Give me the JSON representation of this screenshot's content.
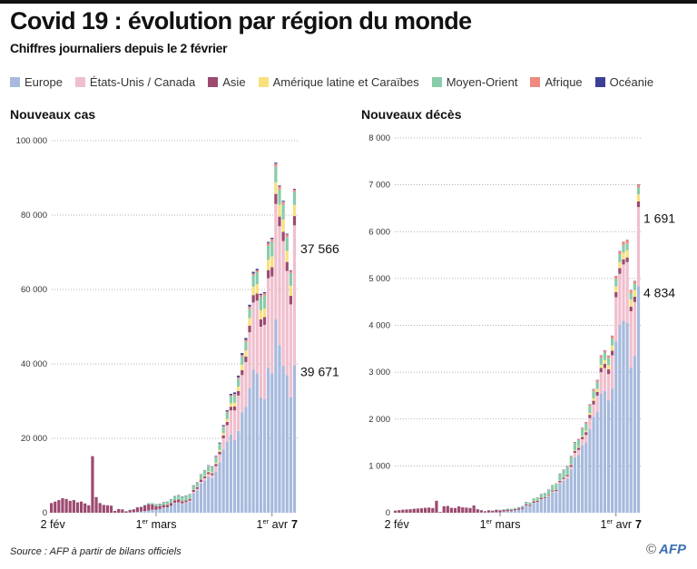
{
  "header": {
    "title": "Covid 19 : évolution par région du monde",
    "subtitle": "Chiffres journaliers depuis le 2 février"
  },
  "legend": [
    {
      "label": "Europe",
      "color": "#a7badd"
    },
    {
      "label": "États-Unis / Canada",
      "color": "#f0bfcd"
    },
    {
      "label": "Asie",
      "color": "#9c4a70"
    },
    {
      "label": "Amérique latine et Caraïbes",
      "color": "#f9e07f"
    },
    {
      "label": "Moyen-Orient",
      "color": "#88ccaa"
    },
    {
      "label": "Afrique",
      "color": "#ee8a7f"
    },
    {
      "label": "Océanie",
      "color": "#3d3f98"
    }
  ],
  "footer": {
    "source": "Source : AFP à partir de bilans officiels",
    "copyright": "©",
    "logo": "AFP"
  },
  "chart_data": [
    {
      "type": "bar",
      "stacked": true,
      "title": "Nouveaux cas",
      "ylim": [
        0,
        100000
      ],
      "yticks": [
        "0",
        "20 000",
        "40 000",
        "60 000",
        "80 000",
        "100 000"
      ],
      "ytick_values": [
        0,
        20000,
        40000,
        60000,
        80000,
        100000
      ],
      "x_start": "2 fév",
      "x_end": "7 avr",
      "xtick_labels": [
        {
          "day": 0,
          "text": "2 fév"
        },
        {
          "day": 28,
          "text": "1",
          "sup": "er",
          "rest": " mars"
        },
        {
          "day": 59,
          "text": "1",
          "sup": "er",
          "rest": " avr"
        },
        {
          "day": 65,
          "text": "7",
          "bold": true
        }
      ],
      "grid": true,
      "annotations": [
        {
          "text": "37 566",
          "series": "États-Unis / Canada"
        },
        {
          "text": "39 671",
          "series": "Europe"
        }
      ],
      "series": [
        {
          "name": "Europe",
          "values": [
            0,
            0,
            0,
            0,
            0,
            0,
            0,
            0,
            0,
            0,
            0,
            0,
            0,
            0,
            0,
            0,
            0,
            0,
            0,
            0,
            0,
            60,
            150,
            250,
            350,
            450,
            600,
            800,
            800,
            1000,
            1400,
            1400,
            1800,
            2600,
            2700,
            2400,
            2700,
            3000,
            5300,
            6000,
            7800,
            8700,
            9700,
            9300,
            11000,
            13500,
            17000,
            19000,
            21000,
            19500,
            22000,
            27000,
            28500,
            33500,
            38500,
            37500,
            31000,
            30500,
            39000,
            37500,
            52000,
            45000,
            39500,
            37000,
            31000,
            39671
          ]
        },
        {
          "name": "États-Unis / Canada",
          "values": [
            0,
            0,
            0,
            0,
            0,
            0,
            0,
            0,
            0,
            0,
            0,
            0,
            0,
            0,
            0,
            0,
            0,
            0,
            0,
            0,
            0,
            0,
            0,
            0,
            0,
            0,
            0,
            0,
            5,
            20,
            30,
            40,
            60,
            100,
            100,
            120,
            150,
            250,
            300,
            400,
            500,
            600,
            700,
            800,
            1500,
            2200,
            3000,
            4500,
            6500,
            8000,
            9500,
            10000,
            12000,
            15000,
            18000,
            19500,
            19000,
            20000,
            24000,
            26000,
            31000,
            32000,
            33500,
            28000,
            25000,
            37566
          ]
        },
        {
          "name": "Asie",
          "values": [
            2600,
            3000,
            3400,
            3900,
            3700,
            3200,
            3400,
            2800,
            3000,
            2500,
            2000,
            15200,
            4200,
            2600,
            2100,
            2000,
            1900,
            500,
            1000,
            900,
            400,
            700,
            800,
            1200,
            1200,
            1500,
            1700,
            1400,
            1000,
            800,
            700,
            700,
            800,
            700,
            800,
            600,
            500,
            500,
            500,
            500,
            600,
            500,
            500,
            500,
            600,
            700,
            800,
            900,
            1000,
            1100,
            1200,
            1300,
            1500,
            1800,
            2000,
            1900,
            2000,
            2100,
            2200,
            2500,
            2700,
            2600,
            2500,
            2400,
            2300,
            2500
          ]
        },
        {
          "name": "Amérique latine et Caraïbes",
          "values": [
            0,
            0,
            0,
            0,
            0,
            0,
            0,
            0,
            0,
            0,
            0,
            0,
            0,
            0,
            0,
            0,
            0,
            0,
            0,
            0,
            0,
            0,
            0,
            0,
            0,
            0,
            0,
            0,
            0,
            0,
            0,
            5,
            10,
            20,
            30,
            40,
            50,
            80,
            100,
            120,
            150,
            200,
            300,
            300,
            400,
            500,
            600,
            800,
            900,
            1000,
            1200,
            1500,
            1600,
            2000,
            2300,
            2500,
            2400,
            2300,
            2800,
            2900,
            3100,
            3200,
            3300,
            3000,
            2700,
            3000
          ]
        },
        {
          "name": "Moyen-Orient",
          "values": [
            0,
            0,
            0,
            0,
            0,
            0,
            0,
            0,
            0,
            0,
            0,
            0,
            0,
            0,
            0,
            0,
            0,
            0,
            0,
            0,
            5,
            10,
            20,
            50,
            100,
            200,
            300,
            400,
            500,
            600,
            700,
            800,
            900,
            1000,
            1100,
            1200,
            1200,
            1100,
            1100,
            1100,
            1200,
            1300,
            1400,
            1400,
            1500,
            1600,
            1700,
            1800,
            1900,
            2000,
            2100,
            2200,
            2400,
            2600,
            3000,
            3200,
            3500,
            3500,
            3800,
            4000,
            4200,
            4100,
            4000,
            3700,
            3400,
            3500
          ]
        },
        {
          "name": "Afrique",
          "values": [
            0,
            0,
            0,
            0,
            0,
            0,
            0,
            0,
            0,
            0,
            0,
            0,
            0,
            0,
            0,
            0,
            0,
            0,
            0,
            0,
            0,
            0,
            0,
            0,
            0,
            0,
            0,
            0,
            0,
            2,
            3,
            5,
            10,
            10,
            20,
            20,
            30,
            40,
            40,
            50,
            60,
            70,
            80,
            100,
            120,
            150,
            200,
            250,
            300,
            350,
            400,
            400,
            450,
            500,
            500,
            550,
            600,
            600,
            700,
            700,
            800,
            800,
            800,
            700,
            600,
            600
          ]
        },
        {
          "name": "Océanie",
          "values": [
            0,
            0,
            0,
            0,
            0,
            0,
            0,
            0,
            0,
            0,
            0,
            0,
            0,
            0,
            0,
            0,
            0,
            0,
            0,
            0,
            0,
            0,
            0,
            0,
            0,
            0,
            0,
            0,
            2,
            2,
            5,
            10,
            10,
            10,
            10,
            15,
            20,
            20,
            30,
            40,
            50,
            60,
            80,
            100,
            150,
            200,
            250,
            300,
            350,
            400,
            450,
            500,
            500,
            500,
            450,
            400,
            350,
            300,
            300,
            300,
            300,
            250,
            250,
            200,
            150,
            200
          ]
        }
      ]
    },
    {
      "type": "bar",
      "stacked": true,
      "title": "Nouveaux décès",
      "ylim": [
        0,
        8000
      ],
      "yticks": [
        "0",
        "1 000",
        "2 000",
        "3 000",
        "4 000",
        "5 000",
        "6 000",
        "7 000",
        "8 000"
      ],
      "ytick_values": [
        0,
        1000,
        2000,
        3000,
        4000,
        5000,
        6000,
        7000,
        8000
      ],
      "x_start": "2 fév",
      "x_end": "7 avr",
      "xtick_labels": [
        {
          "day": 0,
          "text": "2 fév"
        },
        {
          "day": 28,
          "text": "1",
          "sup": "er",
          "rest": " mars"
        },
        {
          "day": 59,
          "text": "1",
          "sup": "er",
          "rest": " avr"
        },
        {
          "day": 65,
          "text": "7",
          "bold": true
        }
      ],
      "grid": true,
      "annotations": [
        {
          "text": "1 691",
          "series": "États-Unis / Canada"
        },
        {
          "text": "4 834",
          "series": "Europe"
        }
      ],
      "series": [
        {
          "name": "Europe",
          "values": [
            0,
            0,
            0,
            0,
            0,
            0,
            0,
            0,
            0,
            0,
            0,
            0,
            0,
            0,
            0,
            0,
            0,
            0,
            0,
            0,
            0,
            0,
            2,
            5,
            5,
            5,
            8,
            10,
            10,
            20,
            30,
            30,
            50,
            60,
            80,
            150,
            140,
            210,
            220,
            280,
            300,
            350,
            440,
            440,
            620,
            680,
            730,
            920,
            1180,
            1230,
            1440,
            1500,
            1780,
            2050,
            2150,
            2550,
            2600,
            2400,
            2650,
            3650,
            4000,
            4100,
            4050,
            3100,
            3350,
            4834
          ]
        },
        {
          "name": "États-Unis / Canada",
          "values": [
            0,
            0,
            0,
            0,
            0,
            0,
            0,
            0,
            0,
            0,
            0,
            0,
            0,
            0,
            0,
            0,
            0,
            0,
            0,
            0,
            0,
            0,
            0,
            0,
            0,
            0,
            0,
            0,
            0,
            5,
            2,
            3,
            1,
            2,
            3,
            4,
            5,
            3,
            8,
            10,
            10,
            15,
            15,
            20,
            30,
            40,
            50,
            60,
            100,
            110,
            130,
            160,
            240,
            260,
            350,
            450,
            490,
            560,
            710,
            950,
            1100,
            1200,
            1300,
            1200,
            1150,
            1691
          ]
        },
        {
          "name": "Asie",
          "values": [
            45,
            55,
            65,
            70,
            75,
            85,
            90,
            95,
            105,
            110,
            100,
            255,
            15,
            140,
            145,
            105,
            100,
            135,
            115,
            110,
            100,
            155,
            75,
            50,
            25,
            45,
            35,
            50,
            40,
            35,
            35,
            30,
            30,
            30,
            25,
            25,
            25,
            30,
            30,
            30,
            20,
            20,
            20,
            30,
            30,
            30,
            30,
            40,
            40,
            50,
            50,
            60,
            70,
            80,
            80,
            90,
            90,
            100,
            100,
            110,
            120,
            110,
            100,
            100,
            110,
            120
          ]
        },
        {
          "name": "Amérique latine et Caraïbes",
          "values": [
            0,
            0,
            0,
            0,
            0,
            0,
            0,
            0,
            0,
            0,
            0,
            0,
            0,
            0,
            0,
            0,
            0,
            0,
            0,
            0,
            0,
            0,
            0,
            0,
            0,
            0,
            0,
            0,
            0,
            0,
            0,
            0,
            0,
            0,
            0,
            0,
            0,
            1,
            1,
            2,
            2,
            3,
            4,
            5,
            6,
            8,
            10,
            12,
            15,
            20,
            25,
            30,
            40,
            50,
            60,
            70,
            80,
            90,
            110,
            120,
            130,
            140,
            150,
            150,
            140,
            150
          ]
        },
        {
          "name": "Moyen-Orient",
          "values": [
            0,
            0,
            0,
            0,
            0,
            0,
            0,
            0,
            0,
            0,
            0,
            0,
            0,
            0,
            0,
            0,
            0,
            0,
            0,
            0,
            0,
            0,
            1,
            3,
            5,
            6,
            8,
            10,
            12,
            15,
            20,
            25,
            20,
            25,
            30,
            45,
            50,
            60,
            70,
            80,
            80,
            100,
            110,
            130,
            140,
            150,
            160,
            160,
            150,
            140,
            140,
            150,
            150,
            160,
            150,
            150,
            160,
            150,
            150,
            160,
            170,
            160,
            150,
            140,
            140,
            150
          ]
        },
        {
          "name": "Afrique",
          "values": [
            0,
            0,
            0,
            0,
            0,
            0,
            0,
            0,
            0,
            0,
            0,
            0,
            0,
            0,
            0,
            0,
            0,
            0,
            0,
            0,
            0,
            0,
            0,
            0,
            0,
            0,
            0,
            0,
            0,
            0,
            0,
            0,
            0,
            0,
            0,
            1,
            1,
            1,
            2,
            2,
            3,
            4,
            5,
            5,
            8,
            10,
            12,
            15,
            20,
            20,
            25,
            30,
            30,
            35,
            40,
            45,
            45,
            50,
            55,
            60,
            65,
            70,
            70,
            60,
            55,
            60
          ]
        },
        {
          "name": "Océanie",
          "values": [
            0,
            0,
            0,
            0,
            0,
            0,
            0,
            0,
            0,
            0,
            0,
            0,
            0,
            0,
            0,
            0,
            0,
            0,
            0,
            0,
            0,
            0,
            0,
            0,
            0,
            0,
            0,
            0,
            0,
            0,
            0,
            0,
            0,
            1,
            1,
            1,
            0,
            0,
            0,
            0,
            1,
            1,
            0,
            0,
            1,
            1,
            1,
            1,
            2,
            3,
            3,
            4,
            5,
            5,
            5,
            3,
            5,
            5,
            5,
            4,
            3,
            4,
            5,
            6,
            5,
            5
          ]
        }
      ]
    }
  ]
}
